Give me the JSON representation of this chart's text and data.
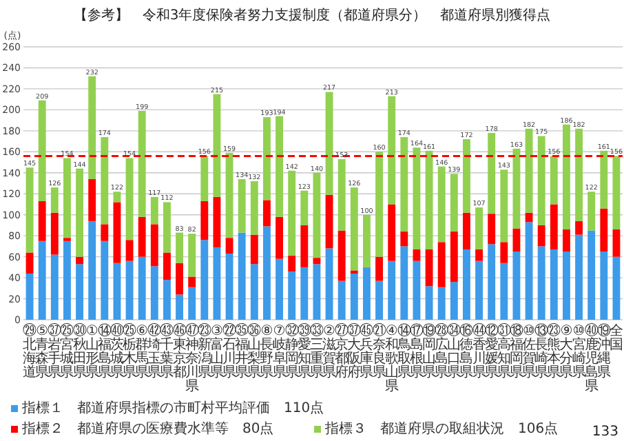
{
  "chart_data": {
    "type": "bar",
    "stacked": true,
    "title": "【参考】　令和3年度保険者努力支援制度（都道府県分）　都道府県別獲得点",
    "ylabel": "(点)",
    "categories": [
      "㉙北海道",
      "⑤青森県",
      "㊲岩手県",
      "㉕宮城県",
      "㉚秋田県",
      "①山形県",
      "⑭福島県",
      "㊵茨城県",
      "㉕栃木県",
      "⑥群馬県",
      "㊷埼玉県",
      "㊸千葉県",
      "㊻東京都",
      "㊼神奈川県",
      "㉓新潟県",
      "③富山県",
      "㉒石川県",
      "㉟福井県",
      "㊱山梨県",
      "⑧長野県",
      "⑦岐阜県",
      "㉜静岡県",
      "㊴愛知県",
      "㉝三重県",
      "②滋賀県",
      "㉗京都府",
      "㊲大阪府",
      "㊺兵庫県",
      "㉑奈良県",
      "④和歌山県",
      "⑭鳥取県",
      "⑰島根県",
      "⑲岡山県",
      "㉘広島県",
      "㉞山口県",
      "⑯徳島県",
      "㊹香川県",
      "⑫愛媛県",
      "㉛高知県",
      "⑱福岡県",
      "⑩佐賀県",
      "⑬長崎県",
      "㉓熊本県",
      "⑨大分県",
      "⑩宮崎県",
      "㊵鹿児島県",
      "⑲沖縄県",
      "全国"
    ],
    "series": [
      {
        "name": "指標１　都道府県指標の市町村平均評価　110点",
        "color": "#3d9be9",
        "values": [
          44,
          75,
          62,
          75,
          53,
          94,
          75,
          54,
          56,
          60,
          51,
          38,
          24,
          31,
          76,
          69,
          63,
          83,
          53,
          89,
          58,
          46,
          50,
          53,
          68,
          37,
          44,
          50,
          37,
          56,
          70,
          56,
          32,
          31,
          36,
          67,
          56,
          72,
          54,
          65,
          93,
          70,
          67,
          65,
          81,
          85,
          65,
          60
        ]
      },
      {
        "name": "指標２　都道府県の医療費水準等　80点",
        "color": "#ff0000",
        "values": [
          20,
          38,
          40,
          3,
          7,
          40,
          16,
          58,
          20,
          38,
          40,
          26,
          30,
          10,
          37,
          48,
          15,
          0,
          28,
          25,
          40,
          15,
          40,
          6,
          51,
          48,
          3,
          0,
          23,
          54,
          14,
          11,
          35,
          43,
          48,
          35,
          11,
          29,
          20,
          22,
          9,
          20,
          43,
          21,
          13,
          0,
          41,
          26
        ]
      },
      {
        "name": "指標３　都道府県の取組状況　106点",
        "color": "#92d050",
        "values": [
          81,
          96,
          24,
          76,
          84,
          98,
          83,
          10,
          78,
          101,
          26,
          48,
          29,
          41,
          43,
          98,
          81,
          51,
          51,
          79,
          96,
          81,
          33,
          81,
          98,
          68,
          79,
          50,
          100,
          103,
          90,
          97,
          94,
          72,
          55,
          70,
          40,
          77,
          69,
          76,
          80,
          85,
          46,
          100,
          88,
          37,
          55,
          70
        ]
      }
    ],
    "totals": [
      "145",
      "209",
      "126",
      "154",
      "144",
      "232",
      "174",
      "122",
      "154",
      "199",
      "117",
      "112",
      "83",
      "82",
      "156",
      "215",
      "159",
      "134",
      "132",
      "193",
      "194",
      "142",
      "123",
      "140",
      "217",
      "153",
      "126",
      "100",
      "160",
      "213",
      "174",
      "164",
      "161",
      "146",
      "139",
      "172",
      "107",
      "178",
      "143",
      "163",
      "182",
      "175",
      "156",
      "186",
      "182",
      "122",
      "161",
      "156"
    ],
    "ylim": [
      0,
      260
    ],
    "yticks": [
      0,
      20,
      40,
      60,
      80,
      100,
      120,
      140,
      160,
      180,
      200,
      220,
      240,
      260
    ],
    "grid": "y",
    "legend": "bottom",
    "ref_lines": [
      {
        "axis": "y",
        "value": 156,
        "color": "#ff0000",
        "line_style": "dashed"
      }
    ],
    "annotations": [
      "133"
    ]
  }
}
